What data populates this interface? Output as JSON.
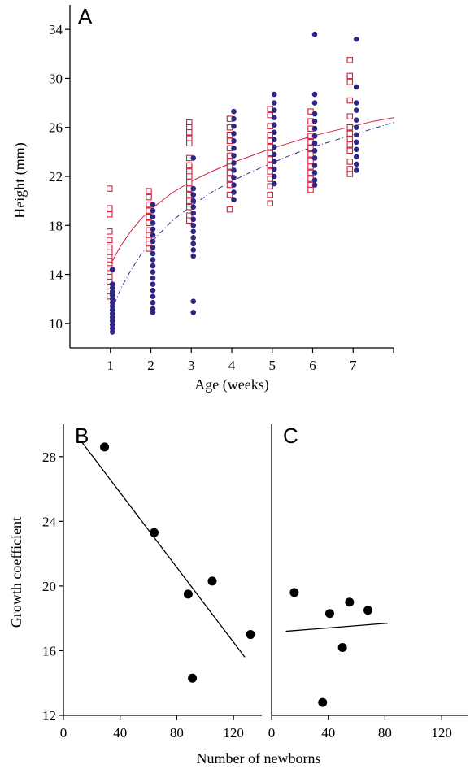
{
  "chart_data": [
    {
      "panel": "A",
      "type": "scatter",
      "xlabel": "Age (weeks)",
      "ylabel": "Height (mm)",
      "xlim": [
        0,
        8
      ],
      "ylim": [
        8,
        36
      ],
      "xticks": [
        1,
        2,
        3,
        4,
        5,
        6,
        7
      ],
      "yticks": [
        10,
        14,
        18,
        22,
        26,
        30,
        34
      ],
      "colors": {
        "open": "#d2203c",
        "filled": "#2e2585"
      },
      "series": [
        {
          "marker": "open-square",
          "points": [
            [
              0.98,
              21
            ],
            [
              0.98,
              19.4
            ],
            [
              0.98,
              18.9
            ],
            [
              0.98,
              17.5
            ],
            [
              0.98,
              16.8
            ],
            [
              0.98,
              16.2
            ],
            [
              0.98,
              15.8
            ],
            [
              0.98,
              15.4
            ],
            [
              0.98,
              15.1
            ],
            [
              0.98,
              14.8
            ],
            [
              0.98,
              14.5
            ],
            [
              0.98,
              14.1
            ],
            [
              0.98,
              13.8
            ],
            [
              0.98,
              13.4
            ],
            [
              0.98,
              13
            ],
            [
              0.98,
              12.6
            ],
            [
              0.98,
              12.2
            ],
            [
              1.95,
              20.8
            ],
            [
              1.95,
              20.3
            ],
            [
              1.95,
              19.7
            ],
            [
              1.95,
              19.2
            ],
            [
              1.95,
              18.7
            ],
            [
              1.95,
              18.2
            ],
            [
              1.95,
              17.6
            ],
            [
              1.95,
              17.2
            ],
            [
              1.95,
              16.8
            ],
            [
              1.95,
              16.5
            ],
            [
              1.95,
              16.1
            ],
            [
              2.95,
              26.4
            ],
            [
              2.95,
              26
            ],
            [
              2.95,
              25.6
            ],
            [
              2.95,
              25.1
            ],
            [
              2.95,
              24.7
            ],
            [
              2.95,
              23.5
            ],
            [
              2.95,
              22.9
            ],
            [
              2.95,
              22.4
            ],
            [
              2.95,
              22
            ],
            [
              2.95,
              21.5
            ],
            [
              2.95,
              21
            ],
            [
              2.95,
              20.5
            ],
            [
              2.95,
              20
            ],
            [
              2.95,
              19.5
            ],
            [
              2.95,
              18.8
            ],
            [
              2.95,
              18.4
            ],
            [
              3.95,
              26.7
            ],
            [
              3.95,
              26
            ],
            [
              3.95,
              25.4
            ],
            [
              3.95,
              24.9
            ],
            [
              3.95,
              24.3
            ],
            [
              3.95,
              23.7
            ],
            [
              3.95,
              23.2
            ],
            [
              3.95,
              22.8
            ],
            [
              3.95,
              22.3
            ],
            [
              3.95,
              21.8
            ],
            [
              3.95,
              21.3
            ],
            [
              3.95,
              20.5
            ],
            [
              3.95,
              19.3
            ],
            [
              4.95,
              27.5
            ],
            [
              4.95,
              27
            ],
            [
              4.95,
              26.1
            ],
            [
              4.95,
              25.4
            ],
            [
              4.95,
              24.9
            ],
            [
              4.95,
              24.4
            ],
            [
              4.95,
              23.9
            ],
            [
              4.95,
              23.4
            ],
            [
              4.95,
              22.9
            ],
            [
              4.95,
              22.4
            ],
            [
              4.95,
              21.8
            ],
            [
              4.95,
              21.2
            ],
            [
              4.95,
              20.5
            ],
            [
              4.95,
              19.8
            ],
            [
              5.95,
              27.3
            ],
            [
              5.95,
              26.5
            ],
            [
              5.95,
              25.9
            ],
            [
              5.95,
              25.3
            ],
            [
              5.95,
              24.8
            ],
            [
              5.95,
              24.3
            ],
            [
              5.95,
              23.8
            ],
            [
              5.95,
              23.3
            ],
            [
              5.95,
              22.8
            ],
            [
              5.95,
              22.3
            ],
            [
              5.95,
              21.8
            ],
            [
              5.95,
              21.3
            ],
            [
              5.95,
              20.9
            ],
            [
              6.92,
              31.5
            ],
            [
              6.92,
              30.2
            ],
            [
              6.92,
              29.7
            ],
            [
              6.92,
              28.2
            ],
            [
              6.92,
              26.9
            ],
            [
              6.92,
              26
            ],
            [
              6.92,
              25.5
            ],
            [
              6.92,
              25
            ],
            [
              6.92,
              24.6
            ],
            [
              6.92,
              24.1
            ],
            [
              6.92,
              23.2
            ],
            [
              6.92,
              22.6
            ],
            [
              6.92,
              22.2
            ]
          ]
        },
        {
          "marker": "filled-circle",
          "points": [
            [
              1.05,
              14.4
            ],
            [
              1.05,
              13.2
            ],
            [
              1.05,
              12.9
            ],
            [
              1.05,
              12.6
            ],
            [
              1.05,
              12.3
            ],
            [
              1.05,
              12
            ],
            [
              1.05,
              11.7
            ],
            [
              1.05,
              11.4
            ],
            [
              1.05,
              11.1
            ],
            [
              1.05,
              10.8
            ],
            [
              1.05,
              10.5
            ],
            [
              1.05,
              10.2
            ],
            [
              1.05,
              9.9
            ],
            [
              1.05,
              9.6
            ],
            [
              1.05,
              9.3
            ],
            [
              2.05,
              19.7
            ],
            [
              2.05,
              19.2
            ],
            [
              2.05,
              18.7
            ],
            [
              2.05,
              18.2
            ],
            [
              2.05,
              17.7
            ],
            [
              2.05,
              17.2
            ],
            [
              2.05,
              16.7
            ],
            [
              2.05,
              16.2
            ],
            [
              2.05,
              15.7
            ],
            [
              2.05,
              15.2
            ],
            [
              2.05,
              14.7
            ],
            [
              2.05,
              14.2
            ],
            [
              2.05,
              13.7
            ],
            [
              2.05,
              13.2
            ],
            [
              2.05,
              12.7
            ],
            [
              2.05,
              12.2
            ],
            [
              2.05,
              11.7
            ],
            [
              2.05,
              11.2
            ],
            [
              2.05,
              10.9
            ],
            [
              3.05,
              23.5
            ],
            [
              3.05,
              21
            ],
            [
              3.05,
              20.5
            ],
            [
              3.05,
              20
            ],
            [
              3.05,
              19.5
            ],
            [
              3.05,
              19
            ],
            [
              3.05,
              18.5
            ],
            [
              3.05,
              18
            ],
            [
              3.05,
              17.5
            ],
            [
              3.05,
              17
            ],
            [
              3.05,
              16.5
            ],
            [
              3.05,
              16
            ],
            [
              3.05,
              15.5
            ],
            [
              3.05,
              11.8
            ],
            [
              3.05,
              10.9
            ],
            [
              4.05,
              27.3
            ],
            [
              4.05,
              26.7
            ],
            [
              4.05,
              26.1
            ],
            [
              4.05,
              25.5
            ],
            [
              4.05,
              24.9
            ],
            [
              4.05,
              24.3
            ],
            [
              4.05,
              23.7
            ],
            [
              4.05,
              23.1
            ],
            [
              4.05,
              22.5
            ],
            [
              4.05,
              21.9
            ],
            [
              4.05,
              21.3
            ],
            [
              4.05,
              20.7
            ],
            [
              4.05,
              20.1
            ],
            [
              5.05,
              28.7
            ],
            [
              5.05,
              28
            ],
            [
              5.05,
              27.4
            ],
            [
              5.05,
              26.8
            ],
            [
              5.05,
              26.2
            ],
            [
              5.05,
              25.6
            ],
            [
              5.05,
              25
            ],
            [
              5.05,
              24.4
            ],
            [
              5.05,
              23.8
            ],
            [
              5.05,
              23.2
            ],
            [
              5.05,
              22.6
            ],
            [
              5.05,
              22
            ],
            [
              5.05,
              21.4
            ],
            [
              6.05,
              33.6
            ],
            [
              6.05,
              28.7
            ],
            [
              6.05,
              28
            ],
            [
              6.05,
              27.1
            ],
            [
              6.05,
              26.5
            ],
            [
              6.05,
              25.9
            ],
            [
              6.05,
              25.3
            ],
            [
              6.05,
              24.7
            ],
            [
              6.05,
              24.1
            ],
            [
              6.05,
              23.5
            ],
            [
              6.05,
              22.9
            ],
            [
              6.05,
              22.3
            ],
            [
              6.05,
              21.7
            ],
            [
              6.05,
              21.3
            ],
            [
              7.08,
              33.2
            ],
            [
              7.08,
              29.3
            ],
            [
              7.08,
              28
            ],
            [
              7.08,
              27.4
            ],
            [
              7.08,
              26.6
            ],
            [
              7.08,
              26
            ],
            [
              7.08,
              25.4
            ],
            [
              7.08,
              24.8
            ],
            [
              7.08,
              24.2
            ],
            [
              7.08,
              23.6
            ],
            [
              7.08,
              23
            ],
            [
              7.08,
              22.5
            ]
          ]
        }
      ],
      "fits": [
        {
          "style": "solid",
          "color": "#d2203c",
          "x": [
            1,
            1.25,
            1.5,
            1.75,
            2,
            2.5,
            3,
            3.5,
            4,
            4.5,
            5,
            5.5,
            6,
            6.5,
            7,
            7.5,
            8
          ],
          "y": [
            14.8,
            16.3,
            17.5,
            18.5,
            19.3,
            20.6,
            21.6,
            22.4,
            23.1,
            23.7,
            24.3,
            24.8,
            25.3,
            25.7,
            26.1,
            26.5,
            26.8
          ]
        },
        {
          "style": "dashed",
          "color": "#2e2585",
          "x": [
            1,
            1.25,
            1.5,
            1.75,
            2,
            2.5,
            3,
            3.5,
            4,
            4.5,
            5,
            5.5,
            6,
            6.5,
            7,
            7.5,
            8
          ],
          "y": [
            10.8,
            12.8,
            14.3,
            15.6,
            16.6,
            18.3,
            19.6,
            20.7,
            21.6,
            22.4,
            23.1,
            23.8,
            24.4,
            24.9,
            25.4,
            25.9,
            26.4
          ]
        }
      ]
    },
    {
      "panel": "B",
      "type": "scatter",
      "xlabel": "Number of newborns",
      "ylabel": "Growth coefficient",
      "xlim": [
        0,
        140
      ],
      "ylim": [
        12,
        30
      ],
      "xticks": [
        0,
        40,
        80,
        120
      ],
      "yticks": [
        12,
        16,
        20,
        24,
        28
      ],
      "points": [
        [
          29,
          28.6
        ],
        [
          64,
          23.3
        ],
        [
          88,
          19.5
        ],
        [
          91,
          14.3
        ],
        [
          105,
          20.3
        ],
        [
          132,
          17
        ]
      ],
      "fit": {
        "x": [
          13,
          128
        ],
        "y": [
          28.9,
          15.6
        ]
      }
    },
    {
      "panel": "C",
      "type": "scatter",
      "xlim": [
        0,
        140
      ],
      "xticks": [
        0,
        40,
        80,
        120
      ],
      "points": [
        [
          16,
          19.6
        ],
        [
          36,
          12.8
        ],
        [
          41,
          18.3
        ],
        [
          50,
          16.2
        ],
        [
          55,
          19
        ],
        [
          68,
          18.5
        ]
      ],
      "fit": {
        "x": [
          10,
          82
        ],
        "y": [
          17.2,
          17.7
        ]
      }
    }
  ]
}
